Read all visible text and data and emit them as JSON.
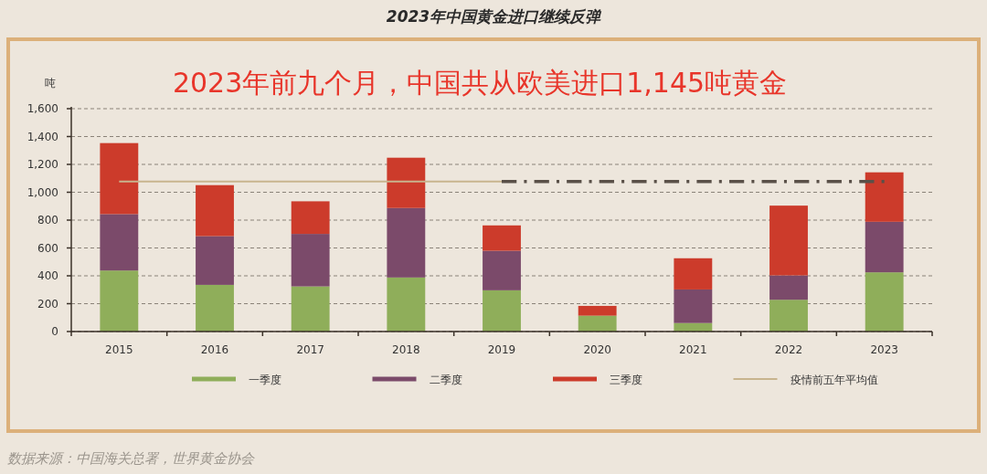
{
  "chart_data": {
    "type": "bar",
    "title": "2023年中国黄金进口继续反弹",
    "subtitle": "2023年前九个月，中国共从欧美进口1,145吨黄金",
    "ylabel": "吨",
    "categories": [
      "2015",
      "2016",
      "2017",
      "2018",
      "2019",
      "2020",
      "2021",
      "2022",
      "2023"
    ],
    "stacked": true,
    "series": [
      {
        "name": "一季度",
        "color": "#8fae5a",
        "values": [
          438,
          335,
          324,
          388,
          296,
          114,
          61,
          228,
          425
        ]
      },
      {
        "name": "二季度",
        "color": "#7b4a6a",
        "values": [
          405,
          350,
          377,
          499,
          284,
          0,
          241,
          175,
          363
        ]
      },
      {
        "name": "三季度",
        "color": "#cc3b2b",
        "values": [
          510,
          366,
          234,
          361,
          182,
          70,
          224,
          501,
          355
        ]
      },
      {
        "name": "疫情前五年平均值",
        "type": "line",
        "color": "#c8b48e",
        "line_style": "solid",
        "values": [
          1077,
          1077,
          1077,
          1077,
          1077,
          null,
          null,
          null,
          null
        ]
      },
      {
        "type": "line",
        "color": "#5a5048",
        "line_style": "dashed",
        "values": [
          null,
          null,
          null,
          null,
          1077,
          1077,
          1077,
          1077,
          1077
        ]
      }
    ],
    "ylim": [
      0,
      1600
    ],
    "yticks": [
      0,
      {
        "value": 200,
        "label": "200"
      },
      {
        "value": 400,
        "label": "400"
      },
      {
        "value": 600,
        "label": "600"
      },
      {
        "value": 800,
        "label": "800"
      },
      {
        "value": 1000,
        "label": "1,000"
      },
      {
        "value": 1200,
        "label": "1,200"
      },
      {
        "value": 1400,
        "label": "1,400"
      },
      {
        "value": 1600,
        "label": "1,600"
      }
    ],
    "grid": "y",
    "legend": "bottom",
    "annotations": [
      "数据来源：中国海关总署，世界黄金协会"
    ]
  }
}
